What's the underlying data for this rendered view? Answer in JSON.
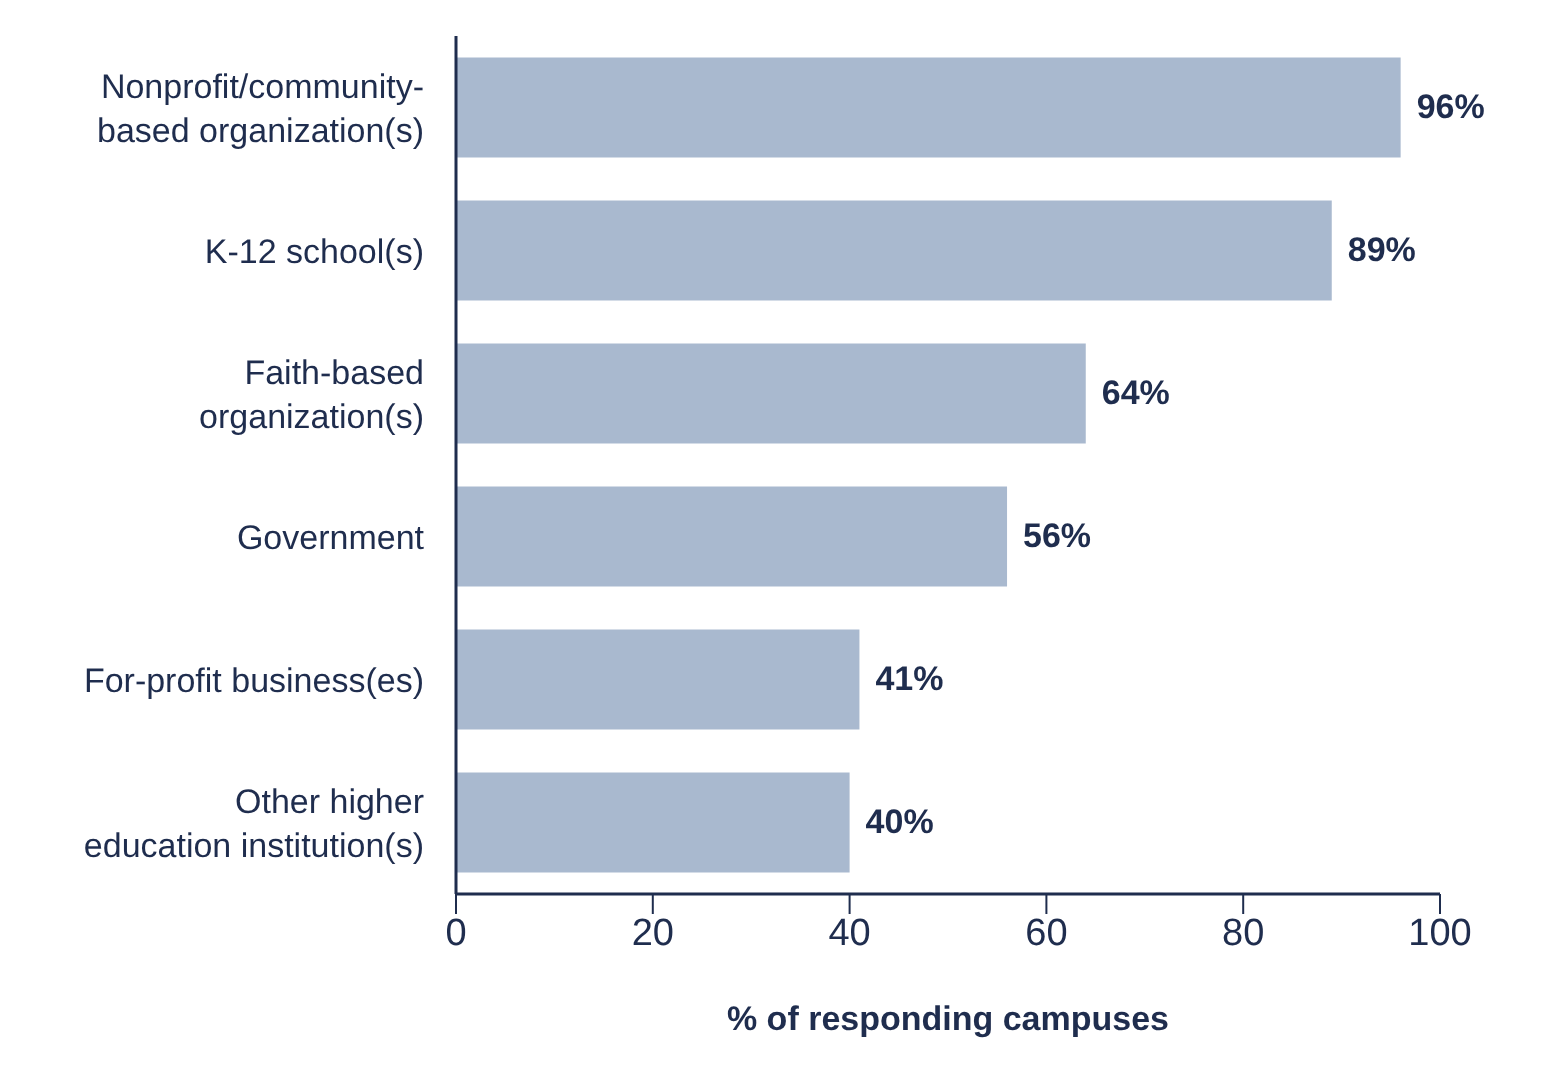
{
  "chart_data": {
    "type": "bar",
    "orientation": "horizontal",
    "xlabel": "% of responding campuses",
    "categories": [
      "Nonprofit/community-\nbased organization(s)",
      "K-12 school(s)",
      "Faith-based\norganization(s)",
      "Government",
      "For-profit business(es)",
      "Other higher\neducation institution(s)"
    ],
    "values": [
      96,
      89,
      64,
      56,
      41,
      40
    ],
    "value_labels": [
      "96%",
      "89%",
      "64%",
      "56%",
      "41%",
      "40%"
    ],
    "color": "#a9b9cf",
    "xlim": [
      0,
      100
    ],
    "xticks": [
      0,
      20,
      40,
      60,
      80,
      100
    ],
    "grid": false,
    "legend": false
  }
}
